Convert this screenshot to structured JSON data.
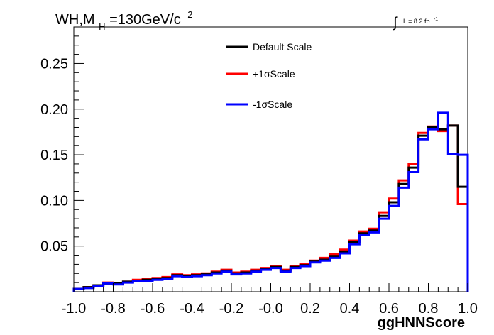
{
  "chart_data": {
    "type": "step",
    "title": {
      "text": "WH,M",
      "subscript": "H",
      "after": "=130GeV/c",
      "superscript": "2"
    },
    "luminosity": {
      "symbol": "∫",
      "text": "L = 8.2 fb",
      "superscript": "-1"
    },
    "xlabel": "ggHNNScore",
    "ylabel": "",
    "xlim": [
      -1.0,
      1.0
    ],
    "ylim": [
      0.0,
      0.29
    ],
    "x_ticks": [
      "-1.0",
      "-0.8",
      "-0.6",
      "-0.4",
      "-0.2",
      "-0.0",
      "0.2",
      "0.4",
      "0.6",
      "0.8",
      "1.0"
    ],
    "x_tick_values": [
      -1.0,
      -0.8,
      -0.6,
      -0.4,
      -0.2,
      0.0,
      0.2,
      0.4,
      0.6,
      0.8,
      1.0
    ],
    "y_ticks": [
      "0.05",
      "0.10",
      "0.15",
      "0.20",
      "0.25"
    ],
    "y_tick_values": [
      0.05,
      0.1,
      0.15,
      0.2,
      0.25
    ],
    "bin_edges": [
      -1.0,
      -0.95,
      -0.9,
      -0.85,
      -0.8,
      -0.75,
      -0.7,
      -0.65,
      -0.6,
      -0.55,
      -0.5,
      -0.45,
      -0.4,
      -0.35,
      -0.3,
      -0.25,
      -0.2,
      -0.15,
      -0.1,
      -0.05,
      0.0,
      0.05,
      0.1,
      0.15,
      0.2,
      0.25,
      0.3,
      0.35,
      0.4,
      0.45,
      0.5,
      0.55,
      0.6,
      0.65,
      0.7,
      0.75,
      0.8,
      0.85,
      0.9,
      0.95,
      1.0
    ],
    "series": [
      {
        "name": "+1σScale",
        "color": "#ff0000",
        "values": [
          0.003,
          0.005,
          0.007,
          0.01,
          0.009,
          0.011,
          0.013,
          0.014,
          0.015,
          0.016,
          0.019,
          0.018,
          0.019,
          0.02,
          0.022,
          0.024,
          0.021,
          0.022,
          0.024,
          0.026,
          0.028,
          0.024,
          0.028,
          0.03,
          0.034,
          0.037,
          0.041,
          0.046,
          0.056,
          0.066,
          0.069,
          0.087,
          0.102,
          0.122,
          0.14,
          0.174,
          0.181,
          0.176,
          0.182,
          0.096
        ]
      },
      {
        "name": "Default Scale",
        "color": "#000000",
        "values": [
          0.003,
          0.005,
          0.007,
          0.009,
          0.009,
          0.011,
          0.012,
          0.013,
          0.014,
          0.015,
          0.018,
          0.017,
          0.018,
          0.019,
          0.021,
          0.023,
          0.02,
          0.021,
          0.023,
          0.025,
          0.027,
          0.023,
          0.027,
          0.029,
          0.033,
          0.035,
          0.039,
          0.044,
          0.054,
          0.064,
          0.067,
          0.083,
          0.098,
          0.118,
          0.136,
          0.171,
          0.18,
          0.178,
          0.182,
          0.115
        ]
      },
      {
        "name": "-1σScale",
        "color": "#0000ff",
        "values": [
          0.003,
          0.004,
          0.006,
          0.009,
          0.008,
          0.01,
          0.012,
          0.012,
          0.013,
          0.014,
          0.017,
          0.016,
          0.017,
          0.018,
          0.02,
          0.022,
          0.019,
          0.02,
          0.022,
          0.024,
          0.026,
          0.022,
          0.026,
          0.028,
          0.032,
          0.034,
          0.037,
          0.042,
          0.052,
          0.062,
          0.065,
          0.08,
          0.094,
          0.114,
          0.131,
          0.167,
          0.178,
          0.196,
          0.151,
          0.15
        ]
      }
    ],
    "legend": {
      "position": "top-center",
      "entries": [
        "Default Scale",
        "+1σScale",
        "-1σScale"
      ]
    },
    "grid": false
  }
}
